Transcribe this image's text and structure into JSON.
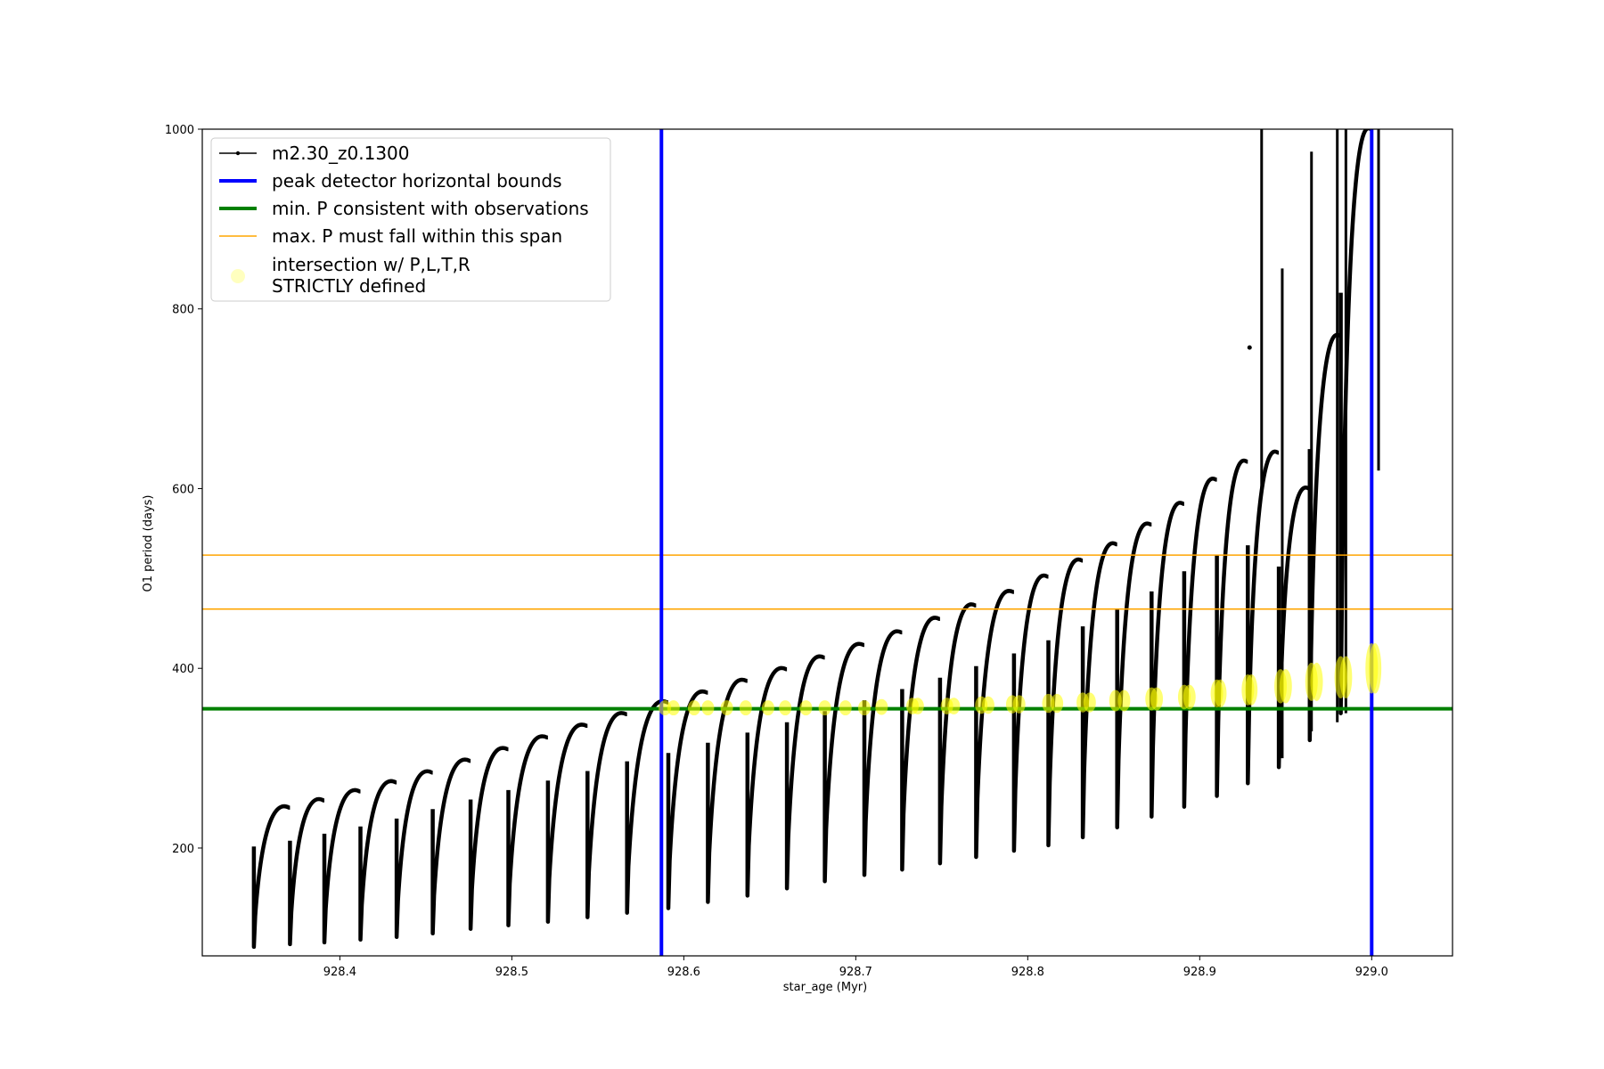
{
  "chart_data": {
    "type": "line",
    "xlabel": "star_age (Myr)",
    "ylabel": "O1 period (days)",
    "xlim": [
      928.32,
      929.047
    ],
    "ylim": [
      80,
      1000
    ],
    "xticks": [
      928.4,
      928.5,
      928.6,
      928.7,
      928.8,
      928.9,
      929.0
    ],
    "xtick_labels": [
      "928.4",
      "928.5",
      "928.6",
      "928.7",
      "928.8",
      "928.9",
      "929.0"
    ],
    "yticks": [
      200,
      400,
      600,
      800,
      1000
    ],
    "ytick_labels": [
      "200",
      "400",
      "600",
      "800",
      "1000"
    ],
    "grid": false,
    "legend_position": "top-left",
    "legend": [
      {
        "label": "m2.30_z0.1300",
        "style": "line-marker",
        "color": "#000000"
      },
      {
        "label": "peak detector horizontal bounds",
        "style": "line",
        "color": "#0000ff"
      },
      {
        "label": "min. P consistent with observations",
        "style": "line",
        "color": "#008000"
      },
      {
        "label": "max. P must fall within this span",
        "style": "line",
        "color": "#ffa500"
      },
      {
        "label": "intersection w/ P,L,T,R",
        "label2": "STRICTLY defined",
        "style": "marker",
        "color": "#ffff66"
      }
    ],
    "vlines": [
      928.587,
      929.0
    ],
    "min_p_line": 355,
    "max_p_span": [
      466,
      526
    ],
    "series": [
      {
        "name": "m2.30_z0.1300",
        "cycles": [
          {
            "start": 928.35,
            "end": 928.371,
            "low": 90,
            "high": 245
          },
          {
            "start": 928.371,
            "end": 928.391,
            "low": 93,
            "high": 253
          },
          {
            "start": 928.391,
            "end": 928.412,
            "low": 95,
            "high": 263
          },
          {
            "start": 928.412,
            "end": 928.433,
            "low": 98,
            "high": 273
          },
          {
            "start": 928.433,
            "end": 928.454,
            "low": 101,
            "high": 284
          },
          {
            "start": 928.454,
            "end": 928.476,
            "low": 105,
            "high": 297
          },
          {
            "start": 928.476,
            "end": 928.498,
            "low": 110,
            "high": 310
          },
          {
            "start": 928.498,
            "end": 928.521,
            "low": 114,
            "high": 323
          },
          {
            "start": 928.521,
            "end": 928.544,
            "low": 118,
            "high": 336
          },
          {
            "start": 928.544,
            "end": 928.567,
            "low": 123,
            "high": 349
          },
          {
            "start": 928.567,
            "end": 928.591,
            "low": 128,
            "high": 362
          },
          {
            "start": 928.591,
            "end": 928.614,
            "low": 133,
            "high": 373
          },
          {
            "start": 928.614,
            "end": 928.637,
            "low": 140,
            "high": 386
          },
          {
            "start": 928.637,
            "end": 928.66,
            "low": 147,
            "high": 399
          },
          {
            "start": 928.66,
            "end": 928.682,
            "low": 155,
            "high": 412
          },
          {
            "start": 928.682,
            "end": 928.705,
            "low": 163,
            "high": 426
          },
          {
            "start": 928.705,
            "end": 928.727,
            "low": 170,
            "high": 440
          },
          {
            "start": 928.727,
            "end": 928.749,
            "low": 176,
            "high": 455
          },
          {
            "start": 928.749,
            "end": 928.77,
            "low": 183,
            "high": 470
          },
          {
            "start": 928.77,
            "end": 928.792,
            "low": 190,
            "high": 485
          },
          {
            "start": 928.792,
            "end": 928.812,
            "low": 197,
            "high": 502
          },
          {
            "start": 928.812,
            "end": 928.832,
            "low": 203,
            "high": 520
          },
          {
            "start": 928.832,
            "end": 928.852,
            "low": 212,
            "high": 538
          },
          {
            "start": 928.852,
            "end": 928.872,
            "low": 223,
            "high": 560
          },
          {
            "start": 928.872,
            "end": 928.891,
            "low": 235,
            "high": 583
          },
          {
            "start": 928.891,
            "end": 928.91,
            "low": 246,
            "high": 610
          },
          {
            "start": 928.91,
            "end": 928.928,
            "low": 258,
            "high": 630
          },
          {
            "start": 928.928,
            "end": 928.946,
            "low": 272,
            "high": 640
          },
          {
            "start": 928.946,
            "end": 928.964,
            "low": 290,
            "high": 600
          },
          {
            "start": 928.964,
            "end": 928.982,
            "low": 320,
            "high": 770
          },
          {
            "start": 928.982,
            "end": 929.0,
            "low": 350,
            "high": 1000
          }
        ],
        "spikes": [
          {
            "x": 928.936,
            "low": 600,
            "high": 1000
          },
          {
            "x": 928.948,
            "low": 300,
            "high": 845
          },
          {
            "x": 928.965,
            "low": 330,
            "high": 975
          },
          {
            "x": 928.98,
            "low": 340,
            "high": 1000
          },
          {
            "x": 928.985,
            "low": 350,
            "high": 1000
          },
          {
            "x": 929.004,
            "low": 620,
            "high": 1000
          }
        ],
        "isolated_points": [
          [
            928.929,
            757
          ]
        ]
      }
    ],
    "intersections": [
      [
        928.589,
        356
      ],
      [
        928.594,
        356
      ],
      [
        928.606,
        356
      ],
      [
        928.614,
        356
      ],
      [
        928.625,
        356
      ],
      [
        928.636,
        356
      ],
      [
        928.649,
        356
      ],
      [
        928.659,
        356
      ],
      [
        928.671,
        356
      ],
      [
        928.682,
        356
      ],
      [
        928.694,
        356
      ],
      [
        928.705,
        356
      ],
      [
        928.715,
        357
      ],
      [
        928.733,
        358
      ],
      [
        928.736,
        358
      ],
      [
        928.753,
        358
      ],
      [
        928.757,
        358
      ],
      [
        928.773,
        359
      ],
      [
        928.777,
        359
      ],
      [
        928.791,
        360
      ],
      [
        928.795,
        360
      ],
      [
        928.812,
        361
      ],
      [
        928.817,
        361
      ],
      [
        928.832,
        362
      ],
      [
        928.836,
        362
      ],
      [
        928.851,
        364
      ],
      [
        928.856,
        364
      ],
      [
        928.872,
        366
      ],
      [
        928.875,
        366
      ],
      [
        928.891,
        368
      ],
      [
        928.894,
        368
      ],
      [
        928.91,
        372
      ],
      [
        928.912,
        372
      ],
      [
        928.928,
        376
      ],
      [
        928.93,
        376
      ],
      [
        928.947,
        380
      ],
      [
        928.95,
        380
      ],
      [
        928.965,
        385
      ],
      [
        928.968,
        385
      ],
      [
        928.982,
        390
      ],
      [
        928.985,
        390
      ],
      [
        929.0,
        400
      ],
      [
        929.002,
        400
      ]
    ]
  }
}
